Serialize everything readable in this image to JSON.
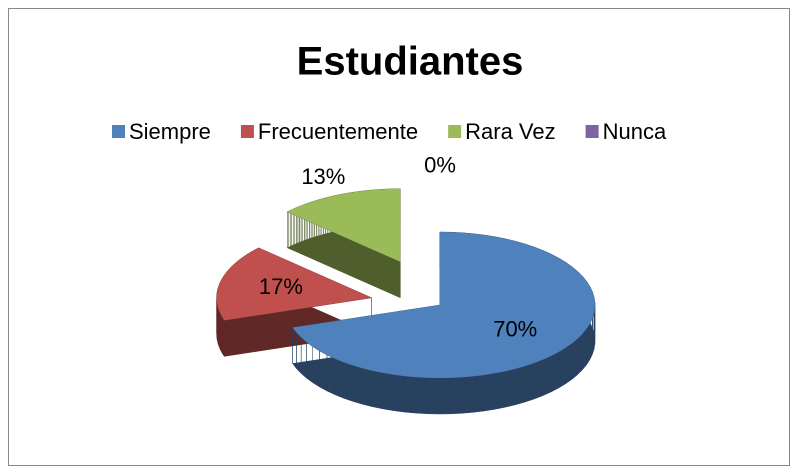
{
  "chart_data": {
    "type": "pie",
    "title": "Estudiantes",
    "categories": [
      "Siempre",
      "Frecuentemente",
      "Rara Vez",
      "Nunca"
    ],
    "values": [
      70,
      17,
      13,
      0
    ],
    "value_labels": [
      "70%",
      "17%",
      "13%",
      "0%"
    ],
    "colors": [
      "#4f81bd",
      "#c0504d",
      "#9bbb59",
      "#8064a2"
    ],
    "legend": "top"
  }
}
